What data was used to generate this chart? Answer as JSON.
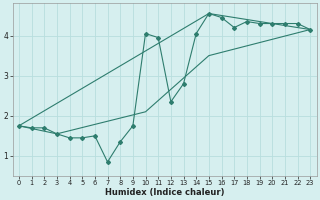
{
  "xlabel": "Humidex (Indice chaleur)",
  "bg_color": "#d6efef",
  "line_color": "#2e7d6e",
  "grid_color": "#b8dede",
  "xlim": [
    -0.5,
    23.5
  ],
  "ylim": [
    0.5,
    4.8
  ],
  "xticks": [
    0,
    1,
    2,
    3,
    4,
    5,
    6,
    7,
    8,
    9,
    10,
    11,
    12,
    13,
    14,
    15,
    16,
    17,
    18,
    19,
    20,
    21,
    22,
    23
  ],
  "yticks": [
    1,
    2,
    3,
    4
  ],
  "series1_x": [
    0,
    1,
    2,
    3,
    4,
    5,
    6,
    7,
    8,
    9,
    10,
    11,
    12,
    13,
    14,
    15,
    16,
    17,
    18,
    19,
    20,
    21,
    22,
    23
  ],
  "series1_y": [
    1.75,
    1.7,
    1.7,
    1.55,
    1.45,
    1.45,
    1.5,
    0.85,
    1.35,
    1.75,
    4.05,
    3.95,
    2.35,
    2.8,
    4.05,
    4.55,
    4.45,
    4.2,
    4.35,
    4.3,
    4.3,
    4.3,
    4.3,
    4.15
  ],
  "series2_x": [
    0,
    3,
    10,
    15,
    23
  ],
  "series2_y": [
    1.75,
    1.55,
    2.1,
    3.5,
    4.15
  ],
  "series3_x": [
    0,
    15,
    23
  ],
  "series3_y": [
    1.75,
    4.55,
    4.15
  ]
}
